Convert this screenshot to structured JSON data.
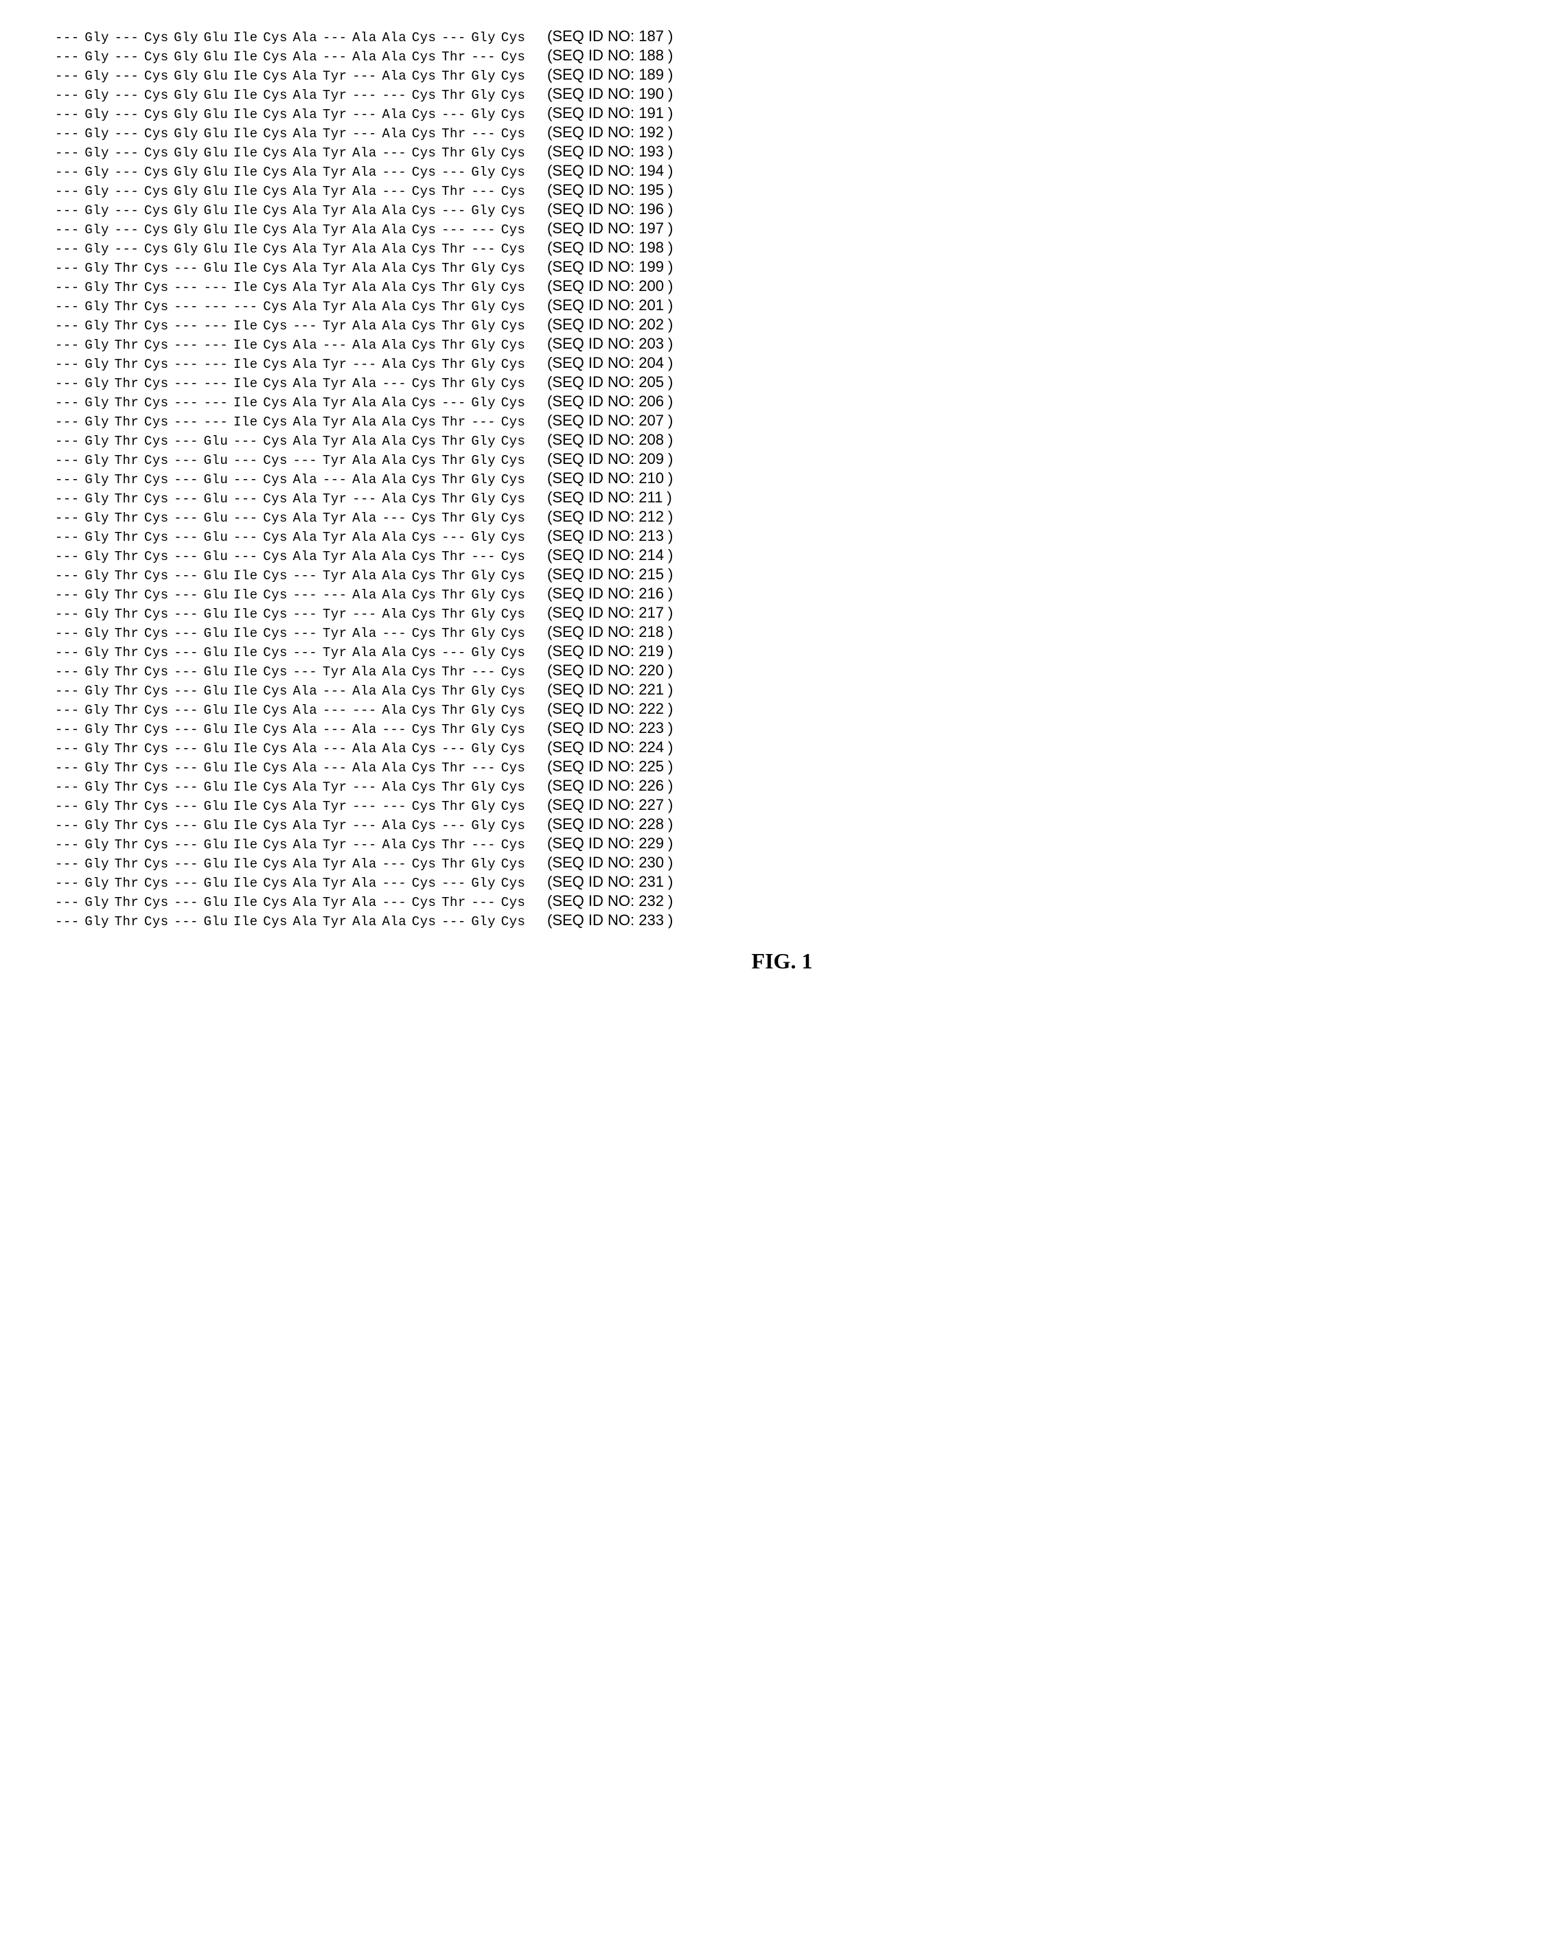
{
  "figure_label": "FIG. 1",
  "sequences": [
    {
      "id": 187,
      "res": [
        "---",
        "Gly",
        "---",
        "Cys",
        "Gly",
        "Glu",
        "Ile",
        "Cys",
        "Ala",
        "---",
        "Ala",
        "Ala",
        "Cys",
        "---",
        "Gly",
        "Cys"
      ]
    },
    {
      "id": 188,
      "res": [
        "---",
        "Gly",
        "---",
        "Cys",
        "Gly",
        "Glu",
        "Ile",
        "Cys",
        "Ala",
        "---",
        "Ala",
        "Ala",
        "Cys",
        "Thr",
        "---",
        "Cys"
      ]
    },
    {
      "id": 189,
      "res": [
        "---",
        "Gly",
        "---",
        "Cys",
        "Gly",
        "Glu",
        "Ile",
        "Cys",
        "Ala",
        "Tyr",
        "---",
        "Ala",
        "Cys",
        "Thr",
        "Gly",
        "Cys"
      ]
    },
    {
      "id": 190,
      "res": [
        "---",
        "Gly",
        "---",
        "Cys",
        "Gly",
        "Glu",
        "Ile",
        "Cys",
        "Ala",
        "Tyr",
        "---",
        "---",
        "Cys",
        "Thr",
        "Gly",
        "Cys"
      ]
    },
    {
      "id": 191,
      "res": [
        "---",
        "Gly",
        "---",
        "Cys",
        "Gly",
        "Glu",
        "Ile",
        "Cys",
        "Ala",
        "Tyr",
        "---",
        "Ala",
        "Cys",
        "---",
        "Gly",
        "Cys"
      ]
    },
    {
      "id": 192,
      "res": [
        "---",
        "Gly",
        "---",
        "Cys",
        "Gly",
        "Glu",
        "Ile",
        "Cys",
        "Ala",
        "Tyr",
        "---",
        "Ala",
        "Cys",
        "Thr",
        "---",
        "Cys"
      ]
    },
    {
      "id": 193,
      "res": [
        "---",
        "Gly",
        "---",
        "Cys",
        "Gly",
        "Glu",
        "Ile",
        "Cys",
        "Ala",
        "Tyr",
        "Ala",
        "---",
        "Cys",
        "Thr",
        "Gly",
        "Cys"
      ]
    },
    {
      "id": 194,
      "res": [
        "---",
        "Gly",
        "---",
        "Cys",
        "Gly",
        "Glu",
        "Ile",
        "Cys",
        "Ala",
        "Tyr",
        "Ala",
        "---",
        "Cys",
        "---",
        "Gly",
        "Cys"
      ]
    },
    {
      "id": 195,
      "res": [
        "---",
        "Gly",
        "---",
        "Cys",
        "Gly",
        "Glu",
        "Ile",
        "Cys",
        "Ala",
        "Tyr",
        "Ala",
        "---",
        "Cys",
        "Thr",
        "---",
        "Cys"
      ]
    },
    {
      "id": 196,
      "res": [
        "---",
        "Gly",
        "---",
        "Cys",
        "Gly",
        "Glu",
        "Ile",
        "Cys",
        "Ala",
        "Tyr",
        "Ala",
        "Ala",
        "Cys",
        "---",
        "Gly",
        "Cys"
      ]
    },
    {
      "id": 197,
      "res": [
        "---",
        "Gly",
        "---",
        "Cys",
        "Gly",
        "Glu",
        "Ile",
        "Cys",
        "Ala",
        "Tyr",
        "Ala",
        "Ala",
        "Cys",
        "---",
        "---",
        "Cys"
      ]
    },
    {
      "id": 198,
      "res": [
        "---",
        "Gly",
        "---",
        "Cys",
        "Gly",
        "Glu",
        "Ile",
        "Cys",
        "Ala",
        "Tyr",
        "Ala",
        "Ala",
        "Cys",
        "Thr",
        "---",
        "Cys"
      ]
    },
    {
      "id": 199,
      "res": [
        "---",
        "Gly",
        "Thr",
        "Cys",
        "---",
        "Glu",
        "Ile",
        "Cys",
        "Ala",
        "Tyr",
        "Ala",
        "Ala",
        "Cys",
        "Thr",
        "Gly",
        "Cys"
      ]
    },
    {
      "id": 200,
      "res": [
        "---",
        "Gly",
        "Thr",
        "Cys",
        "---",
        "---",
        "Ile",
        "Cys",
        "Ala",
        "Tyr",
        "Ala",
        "Ala",
        "Cys",
        "Thr",
        "Gly",
        "Cys"
      ]
    },
    {
      "id": 201,
      "res": [
        "---",
        "Gly",
        "Thr",
        "Cys",
        "---",
        "---",
        "---",
        "Cys",
        "Ala",
        "Tyr",
        "Ala",
        "Ala",
        "Cys",
        "Thr",
        "Gly",
        "Cys"
      ]
    },
    {
      "id": 202,
      "res": [
        "---",
        "Gly",
        "Thr",
        "Cys",
        "---",
        "---",
        "Ile",
        "Cys",
        "---",
        "Tyr",
        "Ala",
        "Ala",
        "Cys",
        "Thr",
        "Gly",
        "Cys"
      ]
    },
    {
      "id": 203,
      "res": [
        "---",
        "Gly",
        "Thr",
        "Cys",
        "---",
        "---",
        "Ile",
        "Cys",
        "Ala",
        "---",
        "Ala",
        "Ala",
        "Cys",
        "Thr",
        "Gly",
        "Cys"
      ]
    },
    {
      "id": 204,
      "res": [
        "---",
        "Gly",
        "Thr",
        "Cys",
        "---",
        "---",
        "Ile",
        "Cys",
        "Ala",
        "Tyr",
        "---",
        "Ala",
        "Cys",
        "Thr",
        "Gly",
        "Cys"
      ]
    },
    {
      "id": 205,
      "res": [
        "---",
        "Gly",
        "Thr",
        "Cys",
        "---",
        "---",
        "Ile",
        "Cys",
        "Ala",
        "Tyr",
        "Ala",
        "---",
        "Cys",
        "Thr",
        "Gly",
        "Cys"
      ]
    },
    {
      "id": 206,
      "res": [
        "---",
        "Gly",
        "Thr",
        "Cys",
        "---",
        "---",
        "Ile",
        "Cys",
        "Ala",
        "Tyr",
        "Ala",
        "Ala",
        "Cys",
        "---",
        "Gly",
        "Cys"
      ]
    },
    {
      "id": 207,
      "res": [
        "---",
        "Gly",
        "Thr",
        "Cys",
        "---",
        "---",
        "Ile",
        "Cys",
        "Ala",
        "Tyr",
        "Ala",
        "Ala",
        "Cys",
        "Thr",
        "---",
        "Cys"
      ]
    },
    {
      "id": 208,
      "res": [
        "---",
        "Gly",
        "Thr",
        "Cys",
        "---",
        "Glu",
        "---",
        "Cys",
        "Ala",
        "Tyr",
        "Ala",
        "Ala",
        "Cys",
        "Thr",
        "Gly",
        "Cys"
      ]
    },
    {
      "id": 209,
      "res": [
        "---",
        "Gly",
        "Thr",
        "Cys",
        "---",
        "Glu",
        "---",
        "Cys",
        "---",
        "Tyr",
        "Ala",
        "Ala",
        "Cys",
        "Thr",
        "Gly",
        "Cys"
      ]
    },
    {
      "id": 210,
      "res": [
        "---",
        "Gly",
        "Thr",
        "Cys",
        "---",
        "Glu",
        "---",
        "Cys",
        "Ala",
        "---",
        "Ala",
        "Ala",
        "Cys",
        "Thr",
        "Gly",
        "Cys"
      ]
    },
    {
      "id": 211,
      "res": [
        "---",
        "Gly",
        "Thr",
        "Cys",
        "---",
        "Glu",
        "---",
        "Cys",
        "Ala",
        "Tyr",
        "---",
        "Ala",
        "Cys",
        "Thr",
        "Gly",
        "Cys"
      ]
    },
    {
      "id": 212,
      "res": [
        "---",
        "Gly",
        "Thr",
        "Cys",
        "---",
        "Glu",
        "---",
        "Cys",
        "Ala",
        "Tyr",
        "Ala",
        "---",
        "Cys",
        "Thr",
        "Gly",
        "Cys"
      ]
    },
    {
      "id": 213,
      "res": [
        "---",
        "Gly",
        "Thr",
        "Cys",
        "---",
        "Glu",
        "---",
        "Cys",
        "Ala",
        "Tyr",
        "Ala",
        "Ala",
        "Cys",
        "---",
        "Gly",
        "Cys"
      ]
    },
    {
      "id": 214,
      "res": [
        "---",
        "Gly",
        "Thr",
        "Cys",
        "---",
        "Glu",
        "---",
        "Cys",
        "Ala",
        "Tyr",
        "Ala",
        "Ala",
        "Cys",
        "Thr",
        "---",
        "Cys"
      ]
    },
    {
      "id": 215,
      "res": [
        "---",
        "Gly",
        "Thr",
        "Cys",
        "---",
        "Glu",
        "Ile",
        "Cys",
        "---",
        "Tyr",
        "Ala",
        "Ala",
        "Cys",
        "Thr",
        "Gly",
        "Cys"
      ]
    },
    {
      "id": 216,
      "res": [
        "---",
        "Gly",
        "Thr",
        "Cys",
        "---",
        "Glu",
        "Ile",
        "Cys",
        "---",
        "---",
        "Ala",
        "Ala",
        "Cys",
        "Thr",
        "Gly",
        "Cys"
      ]
    },
    {
      "id": 217,
      "res": [
        "---",
        "Gly",
        "Thr",
        "Cys",
        "---",
        "Glu",
        "Ile",
        "Cys",
        "---",
        "Tyr",
        "---",
        "Ala",
        "Cys",
        "Thr",
        "Gly",
        "Cys"
      ]
    },
    {
      "id": 218,
      "res": [
        "---",
        "Gly",
        "Thr",
        "Cys",
        "---",
        "Glu",
        "Ile",
        "Cys",
        "---",
        "Tyr",
        "Ala",
        "---",
        "Cys",
        "Thr",
        "Gly",
        "Cys"
      ]
    },
    {
      "id": 219,
      "res": [
        "---",
        "Gly",
        "Thr",
        "Cys",
        "---",
        "Glu",
        "Ile",
        "Cys",
        "---",
        "Tyr",
        "Ala",
        "Ala",
        "Cys",
        "---",
        "Gly",
        "Cys"
      ]
    },
    {
      "id": 220,
      "res": [
        "---",
        "Gly",
        "Thr",
        "Cys",
        "---",
        "Glu",
        "Ile",
        "Cys",
        "---",
        "Tyr",
        "Ala",
        "Ala",
        "Cys",
        "Thr",
        "---",
        "Cys"
      ]
    },
    {
      "id": 221,
      "res": [
        "---",
        "Gly",
        "Thr",
        "Cys",
        "---",
        "Glu",
        "Ile",
        "Cys",
        "Ala",
        "---",
        "Ala",
        "Ala",
        "Cys",
        "Thr",
        "Gly",
        "Cys"
      ]
    },
    {
      "id": 222,
      "res": [
        "---",
        "Gly",
        "Thr",
        "Cys",
        "---",
        "Glu",
        "Ile",
        "Cys",
        "Ala",
        "---",
        "---",
        "Ala",
        "Cys",
        "Thr",
        "Gly",
        "Cys"
      ]
    },
    {
      "id": 223,
      "res": [
        "---",
        "Gly",
        "Thr",
        "Cys",
        "---",
        "Glu",
        "Ile",
        "Cys",
        "Ala",
        "---",
        "Ala",
        "---",
        "Cys",
        "Thr",
        "Gly",
        "Cys"
      ]
    },
    {
      "id": 224,
      "res": [
        "---",
        "Gly",
        "Thr",
        "Cys",
        "---",
        "Glu",
        "Ile",
        "Cys",
        "Ala",
        "---",
        "Ala",
        "Ala",
        "Cys",
        "---",
        "Gly",
        "Cys"
      ]
    },
    {
      "id": 225,
      "res": [
        "---",
        "Gly",
        "Thr",
        "Cys",
        "---",
        "Glu",
        "Ile",
        "Cys",
        "Ala",
        "---",
        "Ala",
        "Ala",
        "Cys",
        "Thr",
        "---",
        "Cys"
      ]
    },
    {
      "id": 226,
      "res": [
        "---",
        "Gly",
        "Thr",
        "Cys",
        "---",
        "Glu",
        "Ile",
        "Cys",
        "Ala",
        "Tyr",
        "---",
        "Ala",
        "Cys",
        "Thr",
        "Gly",
        "Cys"
      ]
    },
    {
      "id": 227,
      "res": [
        "---",
        "Gly",
        "Thr",
        "Cys",
        "---",
        "Glu",
        "Ile",
        "Cys",
        "Ala",
        "Tyr",
        "---",
        "---",
        "Cys",
        "Thr",
        "Gly",
        "Cys"
      ]
    },
    {
      "id": 228,
      "res": [
        "---",
        "Gly",
        "Thr",
        "Cys",
        "---",
        "Glu",
        "Ile",
        "Cys",
        "Ala",
        "Tyr",
        "---",
        "Ala",
        "Cys",
        "---",
        "Gly",
        "Cys"
      ]
    },
    {
      "id": 229,
      "res": [
        "---",
        "Gly",
        "Thr",
        "Cys",
        "---",
        "Glu",
        "Ile",
        "Cys",
        "Ala",
        "Tyr",
        "---",
        "Ala",
        "Cys",
        "Thr",
        "---",
        "Cys"
      ]
    },
    {
      "id": 230,
      "res": [
        "---",
        "Gly",
        "Thr",
        "Cys",
        "---",
        "Glu",
        "Ile",
        "Cys",
        "Ala",
        "Tyr",
        "Ala",
        "---",
        "Cys",
        "Thr",
        "Gly",
        "Cys"
      ]
    },
    {
      "id": 231,
      "res": [
        "---",
        "Gly",
        "Thr",
        "Cys",
        "---",
        "Glu",
        "Ile",
        "Cys",
        "Ala",
        "Tyr",
        "Ala",
        "---",
        "Cys",
        "---",
        "Gly",
        "Cys"
      ]
    },
    {
      "id": 232,
      "res": [
        "---",
        "Gly",
        "Thr",
        "Cys",
        "---",
        "Glu",
        "Ile",
        "Cys",
        "Ala",
        "Tyr",
        "Ala",
        "---",
        "Cys",
        "Thr",
        "---",
        "Cys"
      ]
    },
    {
      "id": 233,
      "res": [
        "---",
        "Gly",
        "Thr",
        "Cys",
        "---",
        "Glu",
        "Ile",
        "Cys",
        "Ala",
        "Tyr",
        "Ala",
        "Ala",
        "Cys",
        "---",
        "Gly",
        "Cys"
      ]
    }
  ],
  "seq_id_prefix": "(SEQ ID NO: ",
  "seq_id_suffix": " )"
}
